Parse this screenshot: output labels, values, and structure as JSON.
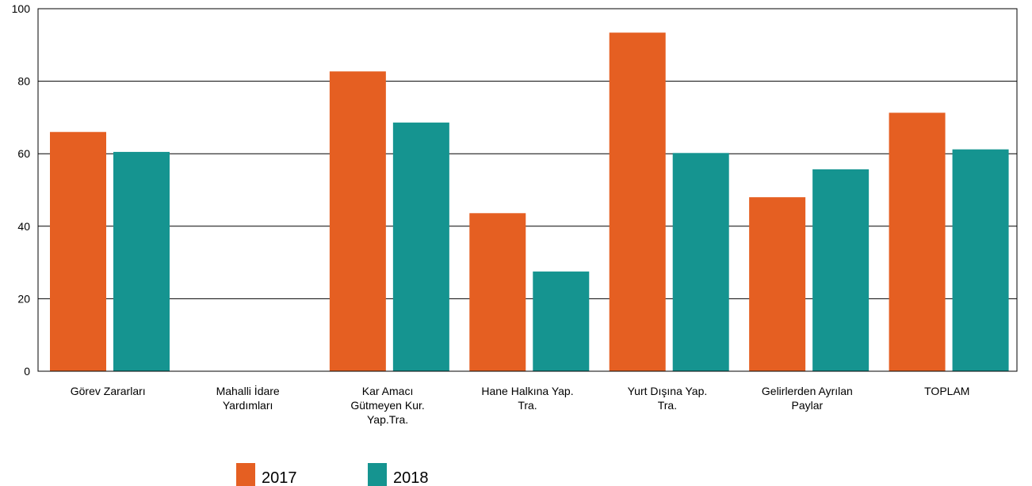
{
  "chart_data": {
    "type": "bar",
    "categories": [
      [
        "Görev Zararları"
      ],
      [
        "Mahalli İdare",
        "Yardımları"
      ],
      [
        "Kar Amacı",
        "Gütmeyen Kur.",
        "Yap.Tra."
      ],
      [
        "Hane Halkına Yap.",
        "Tra."
      ],
      [
        "Yurt Dışına Yap.",
        "Tra."
      ],
      [
        "Gelirlerden Ayrılan",
        "Paylar"
      ],
      [
        "TOPLAM"
      ]
    ],
    "series": [
      {
        "name": "2017",
        "color": "#e55f22",
        "values": [
          66,
          null,
          82.7,
          43.6,
          93.4,
          48,
          71.3
        ]
      },
      {
        "name": "2018",
        "color": "#159490",
        "values": [
          60.5,
          null,
          68.6,
          27.5,
          60.2,
          55.7,
          61.2
        ]
      }
    ],
    "ylim": [
      0,
      100
    ],
    "yticks": [
      0,
      20,
      40,
      60,
      80,
      100
    ],
    "grid": true,
    "legend_position": "bottom"
  }
}
